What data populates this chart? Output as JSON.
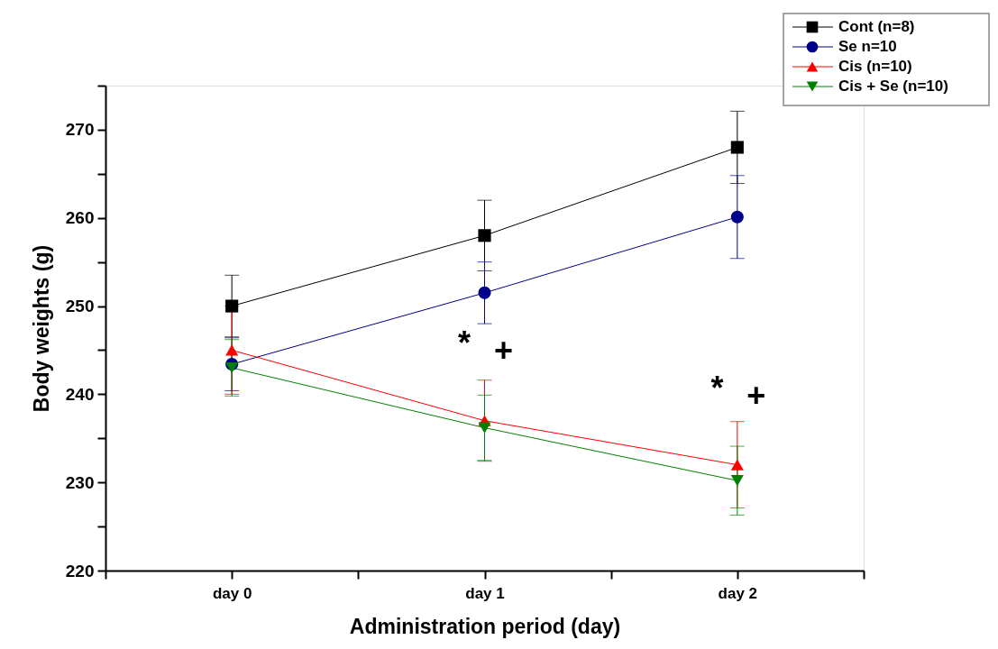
{
  "chart_data": {
    "type": "line",
    "xlabel": "Administration period (day)",
    "ylabel": "Body weights (g)",
    "categories": [
      "day 0",
      "day 1",
      "day 2"
    ],
    "ylim": [
      220,
      275
    ],
    "yticks": [
      220,
      {
        "value": 225,
        "label": null
      },
      230,
      {
        "value": 235,
        "label": null
      },
      240,
      {
        "value": 245,
        "label": null
      },
      250,
      {
        "value": 255,
        "label": null
      },
      260,
      {
        "value": 265,
        "label": null
      },
      270,
      {
        "value": 275,
        "label": null
      }
    ],
    "series": [
      {
        "name": "Cont  (n=8)",
        "color": "#000000",
        "marker": "square",
        "values": [
          250.0,
          258.0,
          268.0
        ],
        "errors": [
          3.5,
          4.0,
          4.1
        ]
      },
      {
        "name": "Se     n=10",
        "color": "#00008b",
        "marker": "circle",
        "values": [
          243.4,
          251.5,
          260.1
        ],
        "errors": [
          3.0,
          3.5,
          4.7
        ]
      },
      {
        "name": "Cis   (n=10)",
        "color": "#ff0000",
        "marker": "triangle",
        "values": [
          245.0,
          237.0,
          232.0
        ],
        "errors": [
          5.0,
          4.6,
          4.9
        ]
      },
      {
        "name": "Cis + Se (n=10)",
        "color": "#008000",
        "marker": "triangle-down",
        "values": [
          243.0,
          236.2,
          230.2
        ],
        "errors": [
          3.2,
          3.7,
          3.9
        ]
      }
    ],
    "annotations": [
      "*",
      "+",
      "*",
      "+"
    ],
    "legend": "top right",
    "grid": false,
    "line_style": "solid"
  }
}
